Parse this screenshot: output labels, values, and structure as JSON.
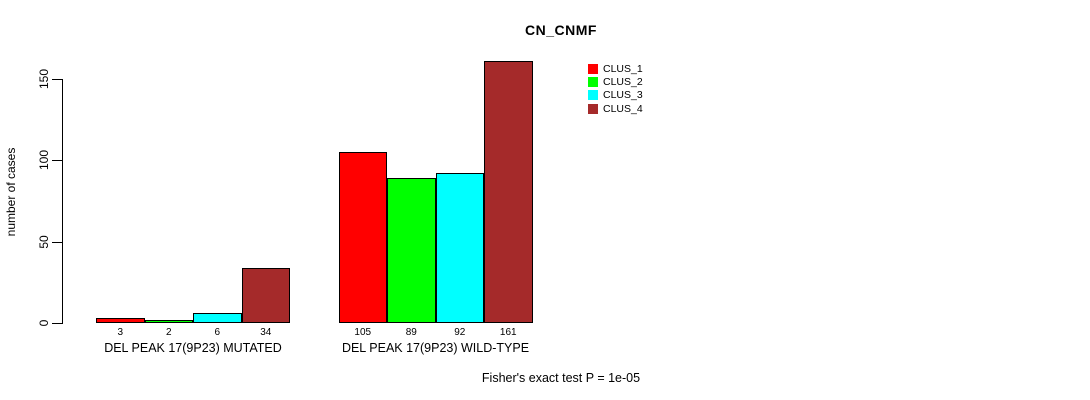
{
  "chart_data": {
    "type": "bar",
    "title": "CN_CNMF",
    "ylabel": "number of cases",
    "xlabel": "",
    "ylim": [
      0,
      165
    ],
    "yticks": [
      0,
      50,
      100,
      150
    ],
    "grid": false,
    "legend_position": "top-right",
    "categories": [
      "DEL PEAK 17(9P23) MUTATED",
      "DEL PEAK 17(9P23) WILD-TYPE"
    ],
    "series": [
      {
        "name": "CLUS_1",
        "color": "#ff0000",
        "values": [
          3,
          105
        ]
      },
      {
        "name": "CLUS_2",
        "color": "#00ff00",
        "values": [
          2,
          89
        ]
      },
      {
        "name": "CLUS_3",
        "color": "#00ffff",
        "values": [
          6,
          92
        ]
      },
      {
        "name": "CLUS_4",
        "color": "#a52a2a",
        "values": [
          34,
          161
        ]
      }
    ],
    "bar_value_labels": [
      "3",
      "2",
      "6",
      "34",
      "105",
      "89",
      "92",
      "161"
    ],
    "annotation": "Fisher's exact test P = 1e-05",
    "axis_color": "#000000",
    "bar_border_color": "#000000"
  }
}
